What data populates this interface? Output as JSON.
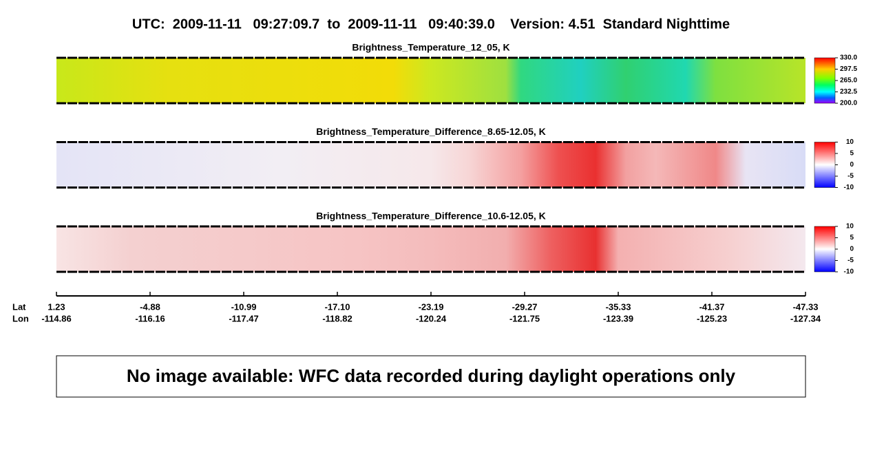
{
  "header": {
    "title": "UTC:  2009-11-11   09:27:09.7  to  2009-11-11   09:40:39.0    Version: 4.51  Standard Nighttime"
  },
  "panels": [
    {
      "title": "Brightness_Temperature_12_05, K",
      "colorbar_labels": [
        "330.0",
        "297.5",
        "265.0",
        "232.5",
        "200.0"
      ]
    },
    {
      "title": "Brightness_Temperature_Difference_8.65-12.05, K",
      "colorbar_labels": [
        "10",
        "5",
        "0",
        "-5",
        "-10"
      ]
    },
    {
      "title": "Brightness_Temperature_Difference_10.6-12.05, K",
      "colorbar_labels": [
        "10",
        "5",
        "0",
        "-5",
        "-10"
      ]
    }
  ],
  "axis": {
    "lat_label": "Lat",
    "lon_label": "Lon",
    "lat": [
      "1.23",
      "-4.88",
      "-10.99",
      "-17.10",
      "-23.19",
      "-29.27",
      "-35.33",
      "-41.37",
      "-47.33"
    ],
    "lon": [
      "-114.86",
      "-116.16",
      "-117.47",
      "-118.82",
      "-120.24",
      "-121.75",
      "-123.39",
      "-125.23",
      "-127.34"
    ]
  },
  "notice": "No image available: WFC data recorded during daylight operations only"
}
